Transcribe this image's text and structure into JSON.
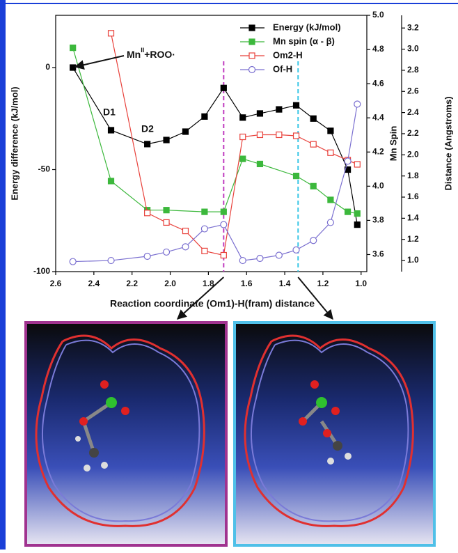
{
  "chart_data": {
    "type": "line",
    "xlabel": "Reaction coordinate (Om1)-H(fram) distance",
    "ylabel": "Energy difference (kJ/mol)",
    "y2label": "Mn Spin",
    "y3label": "Distance (Angstroms)",
    "xlim": [
      2.6,
      0.97
    ],
    "xticks": [
      2.6,
      2.4,
      2.2,
      {
        "value": 2,
        "label": "2.0"
      },
      1.8,
      1.6,
      1.4,
      1.2,
      {
        "value": 1,
        "label": "1.0"
      }
    ],
    "ylim": [
      -100,
      25.6
    ],
    "yticks": [
      0,
      -50,
      -100
    ],
    "y2lim": [
      3.5,
      5.0
    ],
    "y2ticks": [
      {
        "value": 5,
        "label": "5.0"
      },
      4.8,
      4.6,
      4.4,
      4.2,
      {
        "value": 4,
        "label": "4.0"
      },
      3.8,
      3.6
    ],
    "y3lim": [
      0.895,
      3.32
    ],
    "y3ticks": [
      3.2,
      {
        "value": 3,
        "label": "3.0"
      },
      2.8,
      2.6,
      2.4,
      2.2,
      {
        "value": 2,
        "label": "2.0"
      },
      1.8,
      1.6,
      1.4,
      1.2,
      {
        "value": 1,
        "label": "1.0"
      }
    ],
    "legend": "upper right",
    "series": [
      {
        "name": "Energy (kJ/mol)",
        "color": "#000000",
        "marker": "square-filled",
        "axis": "y",
        "x": [
          2.51,
          2.31,
          2.12,
          2.02,
          1.92,
          1.82,
          1.72,
          1.62,
          1.53,
          1.43,
          1.34,
          1.25,
          1.16,
          1.07,
          1.02
        ],
        "values": [
          0,
          -30.7,
          -37.5,
          -35.5,
          -31.4,
          -24,
          -10,
          -24.5,
          -22.5,
          -20.5,
          -18.5,
          -25,
          -31,
          -50,
          -77
        ]
      },
      {
        "name": "Mn spin (α - β)",
        "color": "#3cb83c",
        "marker": "square-filled",
        "axis": "y2",
        "x": [
          2.51,
          2.31,
          2.12,
          2.02,
          1.82,
          1.72,
          1.62,
          1.53,
          1.34,
          1.25,
          1.16,
          1.07,
          1.02
        ],
        "values": [
          4.81,
          4.03,
          3.86,
          3.86,
          3.85,
          3.85,
          4.16,
          4.13,
          4.06,
          4.0,
          3.92,
          3.85,
          3.84
        ]
      },
      {
        "name": "Om2-H",
        "color": "#e8403a",
        "marker": "square-open",
        "axis": "y3",
        "x": [
          2.31,
          2.12,
          2.02,
          1.92,
          1.82,
          1.72,
          1.62,
          1.53,
          1.43,
          1.34,
          1.25,
          1.16,
          1.07,
          1.02
        ],
        "values": [
          3.15,
          1.45,
          1.36,
          1.28,
          1.09,
          1.05,
          2.17,
          2.19,
          2.19,
          2.18,
          2.1,
          2.02,
          1.95,
          1.91
        ]
      },
      {
        "name": "Of-H",
        "color": "#7a6fd0",
        "marker": "circle-open",
        "axis": "y3",
        "x": [
          2.51,
          2.31,
          2.12,
          2.02,
          1.92,
          1.82,
          1.72,
          1.62,
          1.53,
          1.43,
          1.34,
          1.25,
          1.16,
          1.07,
          1.02
        ],
        "values": [
          0.99,
          1.0,
          1.04,
          1.08,
          1.13,
          1.3,
          1.34,
          1.0,
          1.02,
          1.05,
          1.1,
          1.19,
          1.36,
          1.94,
          2.48
        ]
      }
    ],
    "vlines": [
      {
        "x": 1.72,
        "color": "#c03cc0"
      },
      {
        "x": 1.33,
        "color": "#39c6e6"
      }
    ],
    "annotations": [
      {
        "text": "Mn",
        "sup": "II",
        "rest": "+ROO·"
      },
      {
        "text": "D1"
      },
      {
        "text": "D2"
      }
    ]
  }
}
